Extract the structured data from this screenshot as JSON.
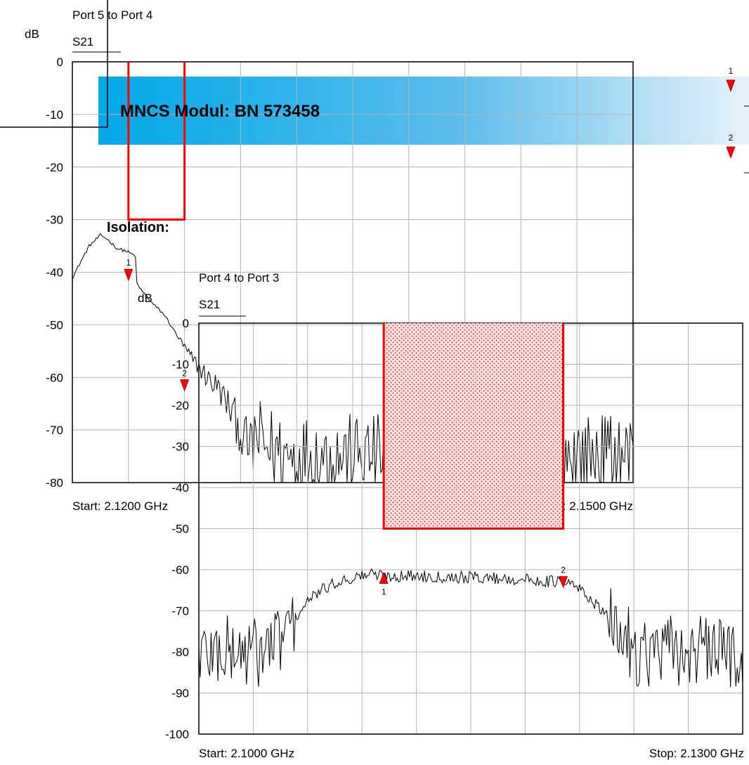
{
  "banner": {
    "title": "MNCS Modul: BN 573458",
    "gradient_start": "#00a8e8",
    "gradient_end": "#e6f2fa"
  },
  "isolation_label": "Isolation:",
  "colors": {
    "trace": "#000000",
    "limit": "#ff0000",
    "marker": "#ff0000",
    "grid": "#b4b4b4"
  },
  "chart_data": [
    {
      "type": "line",
      "title": "Port 5 to Port 4",
      "trace_label": "S21",
      "ylabel": "dB",
      "xlabel": "",
      "x_start_label": "Start: 2.1200 GHz",
      "x_stop_label": "Stop: 2.1500 GHz",
      "xlim_ghz": [
        2.12,
        2.15
      ],
      "ylim": [
        -80,
        0
      ],
      "y_ticks": [
        0,
        -10,
        -20,
        -30,
        -40,
        -50,
        -60,
        -70,
        -80
      ],
      "grid": true,
      "limit_line": {
        "x_start_ghz": 2.123,
        "x_stop_ghz": 2.126,
        "level_db": -30,
        "fill": false
      },
      "markers": [
        {
          "label": "1",
          "x_ghz": 2.123,
          "y": -40.5
        },
        {
          "label": "2",
          "x_ghz": 2.126,
          "y": -61.5
        }
      ],
      "envelope": [
        [
          2.12,
          -41
        ],
        [
          2.1209,
          -35
        ],
        [
          2.1215,
          -33
        ],
        [
          2.1218,
          -33.5
        ],
        [
          2.1224,
          -35.5
        ],
        [
          2.1229,
          -36
        ],
        [
          2.1234,
          -37
        ],
        [
          2.123,
          -40
        ],
        [
          2.1236,
          -43
        ],
        [
          2.1243,
          -46
        ],
        [
          2.1249,
          -48
        ],
        [
          2.1256,
          -52
        ],
        [
          2.1263,
          -56
        ],
        [
          2.1272,
          -60
        ],
        [
          2.1278,
          -62
        ],
        [
          2.1286,
          -67
        ],
        [
          2.1292,
          -72
        ],
        [
          2.1302,
          -76
        ],
        [
          2.1315,
          -78
        ],
        [
          2.135,
          -78
        ],
        [
          2.15,
          -78
        ]
      ],
      "floor_db": -80
    },
    {
      "type": "line",
      "title": "Port 4 to Port 3",
      "trace_label": "S21",
      "ylabel": "dB",
      "xlabel": "",
      "x_start_label": "Start: 2.1000 GHz",
      "x_stop_label": "Stop: 2.1300 GHz",
      "xlim_ghz": [
        2.1,
        2.13
      ],
      "ylim": [
        -100,
        0
      ],
      "y_ticks": [
        0,
        -10,
        -20,
        -30,
        -40,
        -50,
        -60,
        -70,
        -80,
        -90,
        -100
      ],
      "grid": true,
      "limit_line": {
        "x_start_ghz": 2.1102,
        "x_stop_ghz": 2.1201,
        "level_db": -50,
        "fill": true
      },
      "markers": [
        {
          "label": "1",
          "x_ghz": 2.1102,
          "y": -62
        },
        {
          "label": "2",
          "x_ghz": 2.1201,
          "y": -63
        }
      ],
      "envelope": [
        [
          2.1,
          -80
        ],
        [
          2.1035,
          -80
        ],
        [
          2.1047,
          -76
        ],
        [
          2.1056,
          -70
        ],
        [
          2.1064,
          -66
        ],
        [
          2.1076,
          -63
        ],
        [
          2.1094,
          -61
        ],
        [
          2.1102,
          -61.5
        ],
        [
          2.112,
          -61.5
        ],
        [
          2.1161,
          -62
        ],
        [
          2.1201,
          -63
        ],
        [
          2.1208,
          -64
        ],
        [
          2.1216,
          -67
        ],
        [
          2.1228,
          -73
        ],
        [
          2.1243,
          -80
        ],
        [
          2.13,
          -80
        ]
      ],
      "floor_db": -100
    }
  ]
}
